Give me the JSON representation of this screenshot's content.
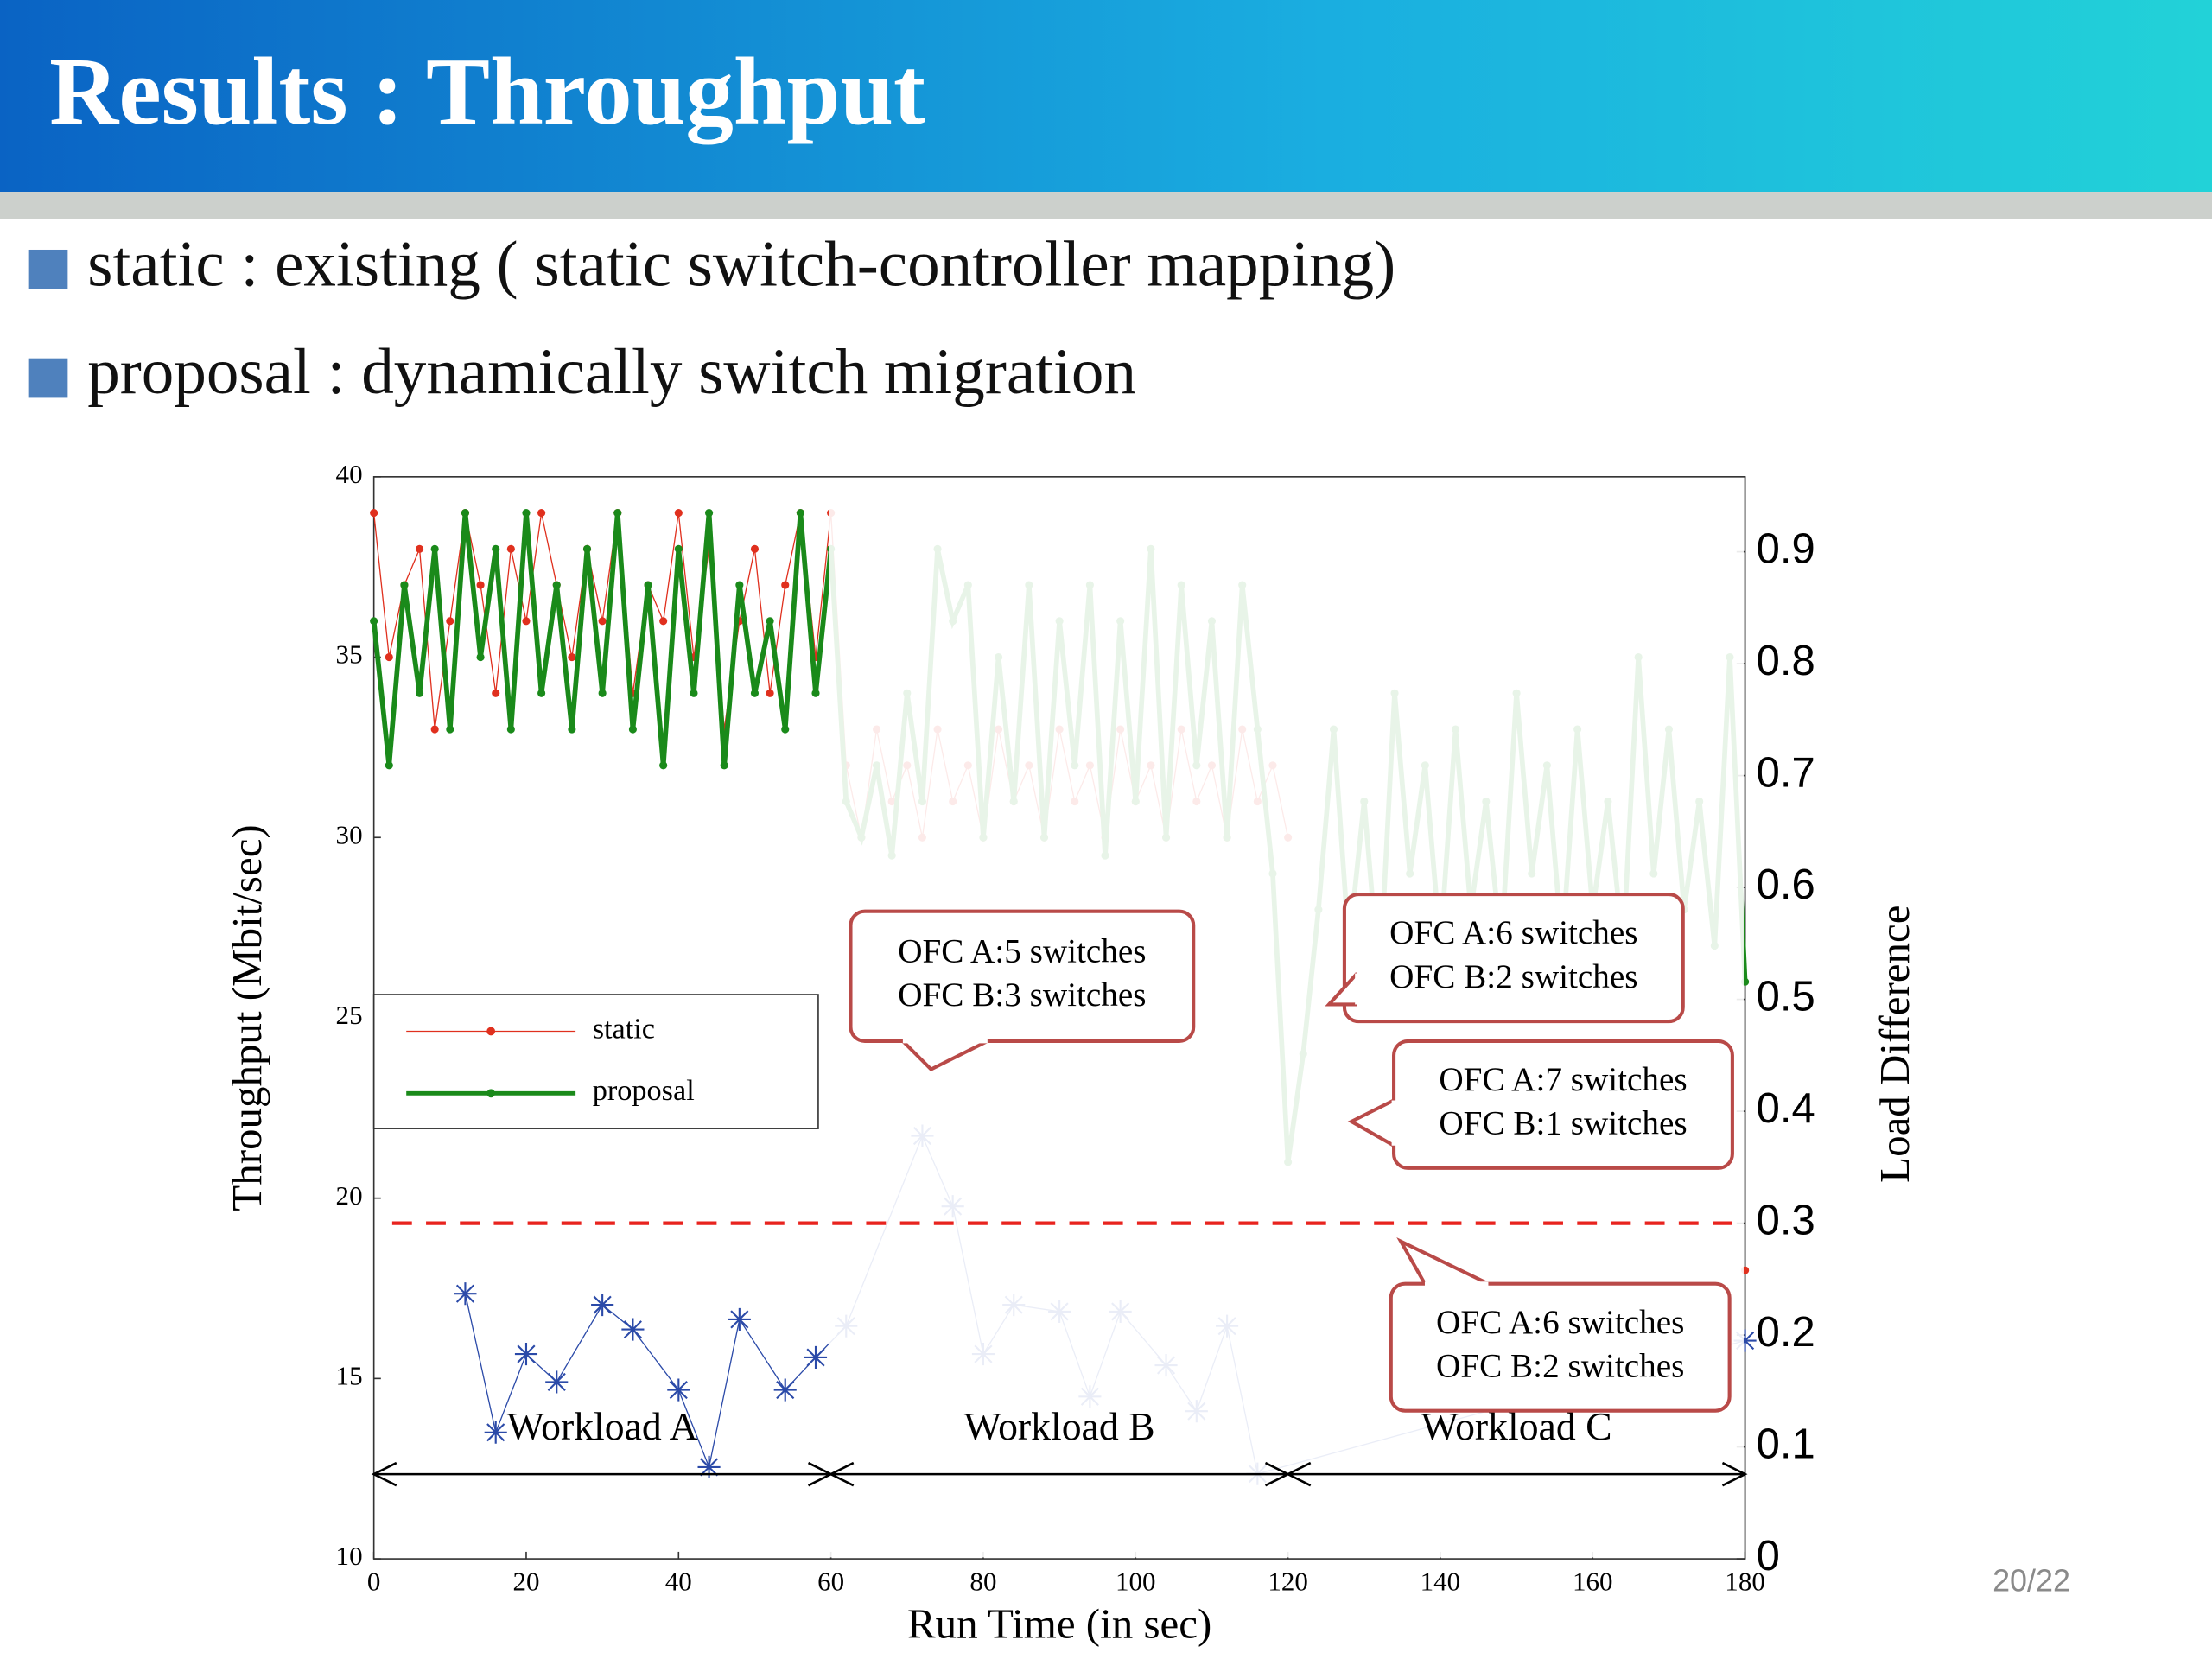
{
  "header": {
    "title": "Results : Throughput"
  },
  "bullets": [
    "static : existing ( static switch-controller mapping)",
    "proposal : dynamically switch migration"
  ],
  "page_number": "20/22",
  "chart_data": {
    "type": "line",
    "x_label": "Run Time (in sec)",
    "y_label": "Throughput (Mbit/sec)",
    "y2_label": "Load Difference",
    "xlim": [
      0,
      180
    ],
    "xticks": [
      0,
      20,
      40,
      60,
      80,
      100,
      120,
      140,
      160,
      180
    ],
    "ylim": [
      10,
      40
    ],
    "yticks": [
      10,
      15,
      20,
      25,
      30,
      35,
      40
    ],
    "y2lim": [
      0,
      0.967
    ],
    "y2ticks": [
      0,
      0.1,
      0.2,
      0.3,
      0.4,
      0.5,
      0.6,
      0.7,
      0.8,
      0.9
    ],
    "x": [
      0,
      2,
      4,
      6,
      8,
      10,
      12,
      14,
      16,
      18,
      20,
      22,
      24,
      26,
      28,
      30,
      32,
      34,
      36,
      38,
      40,
      42,
      44,
      46,
      48,
      50,
      52,
      54,
      56,
      58,
      60,
      62,
      64,
      66,
      68,
      70,
      72,
      74,
      76,
      78,
      80,
      82,
      84,
      86,
      88,
      90,
      92,
      94,
      96,
      98,
      100,
      102,
      104,
      106,
      108,
      110,
      112,
      114,
      116,
      118,
      120,
      122,
      124,
      126,
      128,
      130,
      132,
      134,
      136,
      138,
      140,
      142,
      144,
      146,
      148,
      150,
      152,
      154,
      156,
      158,
      160,
      162,
      164,
      166,
      168,
      170,
      172,
      174,
      176,
      178,
      180
    ],
    "series": [
      {
        "name": "static",
        "color": "#e0301e",
        "values": [
          39,
          35,
          37,
          38,
          33,
          36,
          39,
          37,
          34,
          38,
          36,
          39,
          37,
          35,
          38,
          36,
          39,
          34,
          37,
          36,
          39,
          35,
          38,
          33,
          36,
          38,
          34,
          37,
          39,
          35,
          39,
          32,
          30,
          33,
          31,
          32,
          30,
          33,
          31,
          32,
          30,
          33,
          31,
          32,
          30,
          33,
          31,
          32,
          30,
          33,
          31,
          32,
          30,
          33,
          31,
          32,
          30,
          33,
          31,
          32,
          30,
          null,
          null,
          null,
          null,
          null,
          null,
          null,
          null,
          null,
          null,
          null,
          null,
          null,
          null,
          null,
          null,
          null,
          null,
          null,
          null,
          null,
          null,
          null,
          null,
          null,
          null,
          null,
          null,
          null,
          18
        ]
      },
      {
        "name": "proposal",
        "color": "#1a8a1a",
        "values": [
          36,
          32,
          37,
          34,
          38,
          33,
          39,
          35,
          38,
          33,
          39,
          34,
          37,
          33,
          38,
          34,
          39,
          33,
          37,
          32,
          38,
          34,
          39,
          32,
          37,
          34,
          36,
          33,
          39,
          34,
          38,
          31,
          30,
          32,
          29.5,
          34,
          31,
          38,
          36,
          37,
          30,
          35,
          31,
          37,
          30,
          36,
          32,
          37,
          29.5,
          36,
          31,
          38,
          30,
          37,
          32,
          36,
          30,
          37,
          33,
          29,
          21,
          24,
          28,
          33,
          27,
          31,
          26,
          34,
          29,
          32,
          27,
          33,
          28,
          31,
          27,
          34,
          29,
          32,
          27,
          33,
          28,
          31,
          27,
          35,
          29,
          33,
          28,
          31,
          27,
          35,
          26
        ]
      },
      {
        "color": "#2b4aa8",
        "axis": "y2",
        "x": [
          12,
          16,
          20,
          24,
          30,
          34,
          40,
          44,
          48,
          54,
          58,
          62,
          72,
          76,
          80,
          84,
          90,
          94,
          98,
          104,
          108,
          112,
          116,
          180
        ],
        "values": [
          0.237,
          0.113,
          0.183,
          0.158,
          0.227,
          0.205,
          0.151,
          0.082,
          0.214,
          0.151,
          0.18,
          0.208,
          0.378,
          0.315,
          0.183,
          0.227,
          0.221,
          0.145,
          0.221,
          0.173,
          0.132,
          0.208,
          0.076,
          0.195
        ]
      }
    ],
    "reference_line": {
      "value": 0.3,
      "axis": "y2",
      "color": "#e8231e"
    },
    "regions": [
      {
        "label": "Workload A",
        "from": 0,
        "to": 60
      },
      {
        "label": "Workload B",
        "from": 60,
        "to": 120
      },
      {
        "label": "Workload C",
        "from": 120,
        "to": 180
      }
    ],
    "annotations": [
      {
        "lines": [
          "OFC A:5 switches",
          "OFC B:3 switches"
        ]
      },
      {
        "lines": [
          "OFC A:6 switches",
          "OFC B:2 switches"
        ]
      },
      {
        "lines": [
          "OFC A:7 switches",
          "OFC B:1 switches"
        ]
      },
      {
        "lines": [
          "OFC A:6 switches",
          "OFC B:2 switches"
        ]
      }
    ]
  }
}
